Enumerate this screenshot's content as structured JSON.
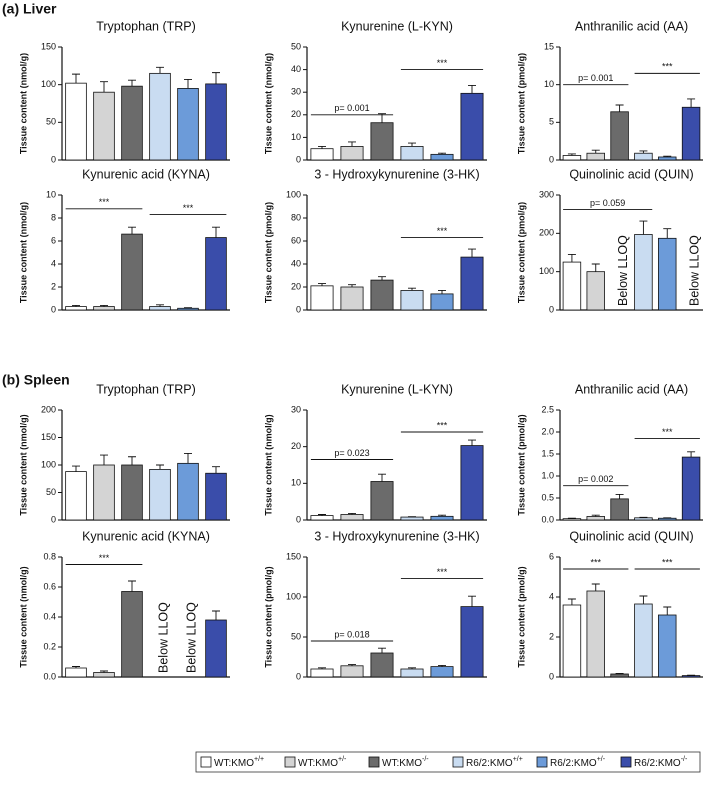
{
  "panels": [
    {
      "label": "(a) Liver"
    },
    {
      "label": "(b) Spleen"
    }
  ],
  "legend": [
    {
      "name": "WT:KMO",
      "sup": "+/+",
      "color": "#ffffff"
    },
    {
      "name": "WT:KMO",
      "sup": "+/-",
      "color": "#d4d4d4"
    },
    {
      "name": "WT:KMO",
      "sup": "-/-",
      "color": "#6b6b6b"
    },
    {
      "name": "R6/2:KMO",
      "sup": "+/+",
      "color": "#c9dcf1"
    },
    {
      "name": "R6/2:KMO",
      "sup": "+/-",
      "color": "#6c9bd9"
    },
    {
      "name": "R6/2:KMO",
      "sup": "-/-",
      "color": "#3a4daa"
    }
  ],
  "chart_data": [
    {
      "type": "bar",
      "title": "Tryptophan (TRP)",
      "ylabel": "Tissue content (nmol/g)",
      "values": [
        102,
        90,
        98,
        115,
        95,
        101
      ],
      "errors": [
        12,
        14,
        8,
        8,
        12,
        15
      ],
      "ylim": [
        0,
        150
      ],
      "yticks": [
        0,
        50,
        100,
        150
      ],
      "annotations": []
    },
    {
      "type": "bar",
      "title": "Kynurenine (L-KYN)",
      "ylabel": "Tissue content (nmol/g)",
      "values": [
        5,
        6,
        16.5,
        6,
        2.5,
        29.5
      ],
      "errors": [
        1,
        2,
        4,
        1.5,
        0.5,
        3.5
      ],
      "ylim": [
        0,
        50
      ],
      "yticks": [
        0,
        10,
        20,
        30,
        40,
        50
      ],
      "annotations": [
        {
          "text": "p= 0.001",
          "from": 0,
          "to": 2,
          "y": 20
        },
        {
          "text": "***",
          "from": 3,
          "to": 5,
          "y": 40
        }
      ]
    },
    {
      "type": "bar",
      "title": "Anthranilic acid (AA)",
      "ylabel": "Tissue content (pmol/g)",
      "values": [
        0.6,
        0.9,
        6.4,
        0.9,
        0.4,
        7
      ],
      "errors": [
        0.2,
        0.4,
        0.9,
        0.3,
        0.1,
        1.1
      ],
      "ylim": [
        0,
        15
      ],
      "yticks": [
        0,
        5,
        10,
        15
      ],
      "annotations": [
        {
          "text": "p= 0.001",
          "from": 0,
          "to": 2,
          "y": 10
        },
        {
          "text": "***",
          "from": 3,
          "to": 5,
          "y": 11.5
        }
      ]
    },
    {
      "type": "bar",
      "title": "Kynurenic acid (KYNA)",
      "ylabel": "Tissue content (nmol/g)",
      "values": [
        0.3,
        0.3,
        6.6,
        0.3,
        0.15,
        6.3
      ],
      "errors": [
        0.1,
        0.1,
        0.6,
        0.15,
        0.05,
        0.9
      ],
      "ylim": [
        0,
        10
      ],
      "yticks": [
        0,
        2,
        4,
        6,
        8,
        10
      ],
      "annotations": [
        {
          "text": "***",
          "from": 0,
          "to": 2,
          "y": 8.8
        },
        {
          "text": "***",
          "from": 3,
          "to": 5,
          "y": 8.3
        }
      ]
    },
    {
      "type": "bar",
      "title": "3 - Hydroxykynurenine (3-HK)",
      "ylabel": "Tissue content (pmol/g)",
      "values": [
        21,
        20,
        26,
        17,
        14,
        46
      ],
      "errors": [
        2,
        2,
        3,
        2,
        3,
        7
      ],
      "ylim": [
        0,
        100
      ],
      "yticks": [
        0,
        20,
        40,
        60,
        80,
        100
      ],
      "annotations": [
        {
          "text": "***",
          "from": 3,
          "to": 5,
          "y": 63
        }
      ]
    },
    {
      "type": "bar",
      "title": "Quinolinic acid (QUIN)",
      "ylabel": "Tissue content (pmol/g)",
      "values": [
        125,
        100,
        null,
        197,
        187,
        null
      ],
      "errors": [
        20,
        20,
        null,
        35,
        25,
        null
      ],
      "ylim": [
        0,
        300
      ],
      "yticks": [
        0,
        100,
        200,
        300
      ],
      "annotations": [
        {
          "text": "p= 0.059",
          "from": 0,
          "to": 3,
          "y": 262
        }
      ],
      "bar_labels": [
        {
          "text": "Below LLOQ",
          "bar": 2
        },
        {
          "text": "Below LLOQ",
          "bar": 5
        }
      ]
    },
    {
      "type": "bar",
      "title": "Tryptophan (TRP)",
      "ylabel": "Tissue content (nmol/g)",
      "values": [
        88,
        100,
        100,
        92,
        103,
        85
      ],
      "errors": [
        10,
        18,
        15,
        8,
        18,
        12
      ],
      "ylim": [
        0,
        200
      ],
      "yticks": [
        0,
        50,
        100,
        150,
        200
      ],
      "annotations": []
    },
    {
      "type": "bar",
      "title": "Kynurenine (L-KYN)",
      "ylabel": "Tissue content (nmol/g)",
      "values": [
        1.2,
        1.5,
        10.5,
        0.8,
        1,
        20.3
      ],
      "errors": [
        0.3,
        0.3,
        2,
        0.1,
        0.3,
        1.5
      ],
      "ylim": [
        0,
        30
      ],
      "yticks": [
        0,
        10,
        20,
        30
      ],
      "annotations": [
        {
          "text": "p= 0.023",
          "from": 0,
          "to": 2,
          "y": 16.5
        },
        {
          "text": "***",
          "from": 3,
          "to": 5,
          "y": 24
        }
      ]
    },
    {
      "type": "bar",
      "title": "Anthranilic acid (AA)",
      "ylabel": "Tissue content (pmol/g)",
      "values": [
        0.03,
        0.08,
        0.48,
        0.05,
        0.04,
        1.43
      ],
      "errors": [
        0.01,
        0.03,
        0.1,
        0.01,
        0.01,
        0.12
      ],
      "ylim": [
        0,
        2.5
      ],
      "yticks": [
        {
          "value": 0,
          "label": "0.0"
        },
        {
          "value": 0.5,
          "label": "0.5"
        },
        {
          "value": 1,
          "label": "1.0"
        },
        {
          "value": 1.5,
          "label": "1.5"
        },
        {
          "value": 2,
          "label": "2.0"
        },
        {
          "value": 2.5,
          "label": "2.5"
        }
      ],
      "annotations": [
        {
          "text": "p= 0.002",
          "from": 0,
          "to": 2,
          "y": 0.78
        },
        {
          "text": "***",
          "from": 3,
          "to": 5,
          "y": 1.85
        }
      ]
    },
    {
      "type": "bar",
      "title": "Kynurenic acid (KYNA)",
      "ylabel": "Tissue content (nmol/g)",
      "values": [
        0.06,
        0.03,
        0.57,
        null,
        null,
        0.38
      ],
      "errors": [
        0.01,
        0.01,
        0.07,
        null,
        null,
        0.06
      ],
      "ylim": [
        0,
        0.8
      ],
      "yticks": [
        {
          "value": 0,
          "label": "0.0"
        },
        {
          "value": 0.2,
          "label": "0.2"
        },
        {
          "value": 0.4,
          "label": "0.4"
        },
        {
          "value": 0.6,
          "label": "0.6"
        },
        {
          "value": 0.8,
          "label": "0.8"
        }
      ],
      "annotations": [
        {
          "text": "***",
          "from": 0,
          "to": 2,
          "y": 0.75
        }
      ],
      "bar_labels": [
        {
          "text": "Below LLOQ",
          "bar": 3
        },
        {
          "text": "Below LLOQ",
          "bar": 4
        }
      ]
    },
    {
      "type": "bar",
      "title": "3 - Hydroxykynurenine (3-HK)",
      "ylabel": "Tissue content (pmol/g)",
      "values": [
        10,
        14,
        30,
        10,
        13,
        88
      ],
      "errors": [
        1.5,
        1.5,
        6,
        1.5,
        1.5,
        13
      ],
      "ylim": [
        0,
        150
      ],
      "yticks": [
        0,
        50,
        100,
        150
      ],
      "annotations": [
        {
          "text": "p= 0.018",
          "from": 0,
          "to": 2,
          "y": 45
        },
        {
          "text": "***",
          "from": 3,
          "to": 5,
          "y": 123
        }
      ]
    },
    {
      "type": "bar",
      "title": "Quinolinic acid (QUIN)",
      "ylabel": "Tissue content (pmol/g)",
      "values": [
        3.6,
        4.3,
        0.15,
        3.65,
        3.1,
        0.07
      ],
      "errors": [
        0.3,
        0.35,
        0.03,
        0.4,
        0.4,
        0.02
      ],
      "ylim": [
        0,
        6
      ],
      "yticks": [
        0,
        2,
        4,
        6
      ],
      "annotations": [
        {
          "text": "***",
          "from": 0,
          "to": 2,
          "y": 5.4
        },
        {
          "text": "***",
          "from": 3,
          "to": 5,
          "y": 5.4
        }
      ]
    }
  ]
}
